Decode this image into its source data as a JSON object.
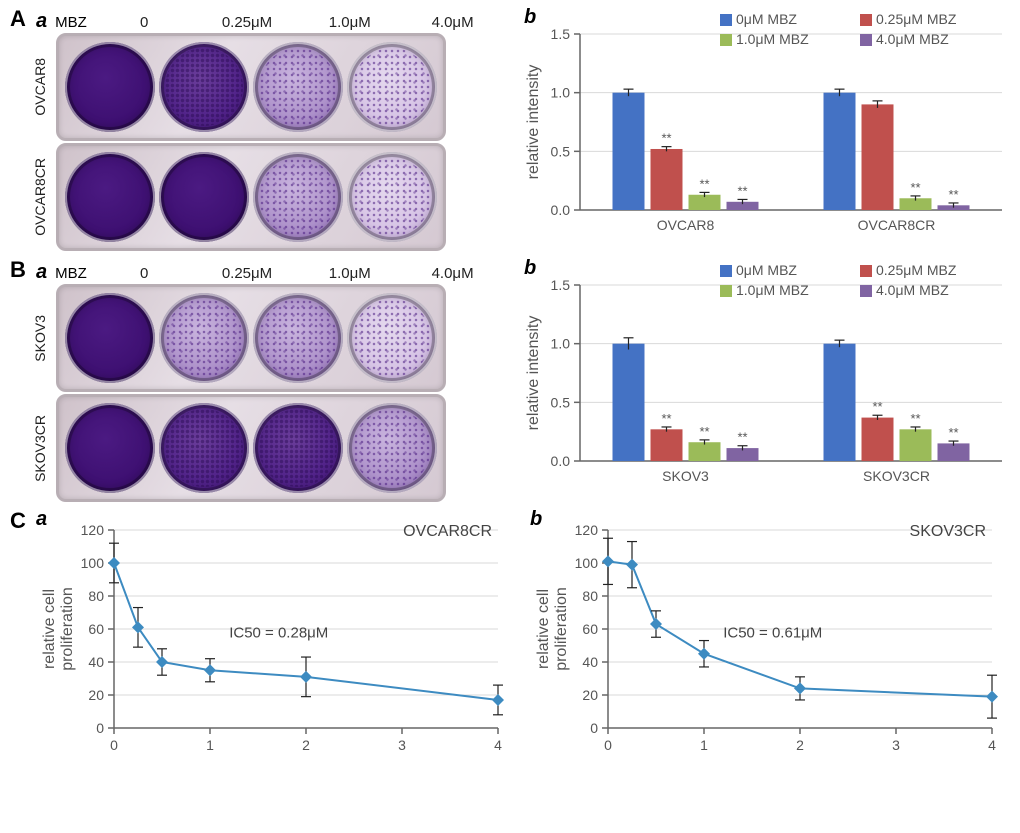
{
  "colors": {
    "blue": "#4472c4",
    "red": "#c0504d",
    "green": "#9bbb59",
    "purple": "#8064a2",
    "line": "#3d8bc1"
  },
  "sigMarker": "**",
  "panelA": {
    "letter": "A",
    "sub_a": "a",
    "sub_b": "b",
    "mbz_label": "MBZ",
    "concentrations": [
      "0",
      "0.25μM",
      "1.0μM",
      "4.0μM"
    ],
    "rows": [
      {
        "label": "OVCAR8",
        "wells": [
          "dense",
          "mid",
          "sparse",
          "vsparse"
        ]
      },
      {
        "label": "OVCAR8CR",
        "wells": [
          "dense",
          "dense",
          "sparse",
          "vsparse"
        ]
      }
    ],
    "bar": {
      "ylabel": "relative intensity",
      "ylim": [
        0,
        1.5
      ],
      "ytick_step": 0.5,
      "legend": [
        "0μM MBZ",
        "0.25μM MBZ",
        "1.0μM MBZ",
        "4.0μM MBZ"
      ],
      "legendColors": [
        "blue",
        "red",
        "green",
        "purple"
      ],
      "groups": [
        {
          "name": "OVCAR8",
          "values": [
            1.0,
            0.52,
            0.13,
            0.07
          ],
          "err": [
            0.03,
            0.02,
            0.02,
            0.02
          ],
          "sig": [
            false,
            true,
            true,
            true
          ]
        },
        {
          "name": "OVCAR8CR",
          "values": [
            1.0,
            0.9,
            0.1,
            0.04
          ],
          "err": [
            0.03,
            0.03,
            0.02,
            0.02
          ],
          "sig": [
            false,
            false,
            true,
            true
          ]
        }
      ]
    }
  },
  "panelB": {
    "letter": "B",
    "sub_a": "a",
    "sub_b": "b",
    "mbz_label": "MBZ",
    "concentrations": [
      "0",
      "0.25μM",
      "1.0μM",
      "4.0μM"
    ],
    "rows": [
      {
        "label": "SKOV3",
        "wells": [
          "dense",
          "sparse",
          "sparse",
          "vsparse"
        ]
      },
      {
        "label": "SKOV3CR",
        "wells": [
          "dense",
          "mid",
          "mid",
          "sparse"
        ]
      }
    ],
    "bar": {
      "ylabel": "relative intensity",
      "ylim": [
        0,
        1.5
      ],
      "ytick_step": 0.5,
      "legend": [
        "0μM MBZ",
        "0.25μM MBZ",
        "1.0μM MBZ",
        "4.0μM MBZ"
      ],
      "legendColors": [
        "blue",
        "red",
        "green",
        "purple"
      ],
      "groups": [
        {
          "name": "SKOV3",
          "values": [
            1.0,
            0.27,
            0.16,
            0.11
          ],
          "err": [
            0.05,
            0.02,
            0.02,
            0.02
          ],
          "sig": [
            false,
            true,
            true,
            true
          ]
        },
        {
          "name": "SKOV3CR",
          "values": [
            1.0,
            0.37,
            0.27,
            0.15
          ],
          "err": [
            0.03,
            0.02,
            0.02,
            0.02
          ],
          "sig": [
            false,
            true,
            true,
            true
          ]
        }
      ]
    }
  },
  "panelC": {
    "letter": "C",
    "sub_a": "a",
    "sub_b": "b",
    "charts": [
      {
        "title": "OVCAR8CR",
        "ylabel": "relative cell\nproliferation",
        "ic50_label": "IC50 = 0.28μM",
        "xlim": [
          0,
          4
        ],
        "xticks": [
          0,
          1,
          2,
          3,
          4
        ],
        "ylim": [
          0,
          120
        ],
        "yticks": [
          0,
          20,
          40,
          60,
          80,
          100,
          120
        ],
        "points": [
          {
            "x": 0,
            "y": 100,
            "err": 12
          },
          {
            "x": 0.25,
            "y": 61,
            "err": 12
          },
          {
            "x": 0.5,
            "y": 40,
            "err": 8
          },
          {
            "x": 1,
            "y": 35,
            "err": 7
          },
          {
            "x": 2,
            "y": 31,
            "err": 12
          },
          {
            "x": 4,
            "y": 17,
            "err": 9
          }
        ]
      },
      {
        "title": "SKOV3CR",
        "ylabel": "relative cell\nproliferation",
        "ic50_label": "IC50 = 0.61μM",
        "xlim": [
          0,
          4
        ],
        "xticks": [
          0,
          1,
          2,
          3,
          4
        ],
        "ylim": [
          0,
          120
        ],
        "yticks": [
          0,
          20,
          40,
          60,
          80,
          100,
          120
        ],
        "points": [
          {
            "x": 0,
            "y": 101,
            "err": 14
          },
          {
            "x": 0.25,
            "y": 99,
            "err": 14
          },
          {
            "x": 0.5,
            "y": 63,
            "err": 8
          },
          {
            "x": 1,
            "y": 45,
            "err": 8
          },
          {
            "x": 2,
            "y": 24,
            "err": 7
          },
          {
            "x": 4,
            "y": 19,
            "err": 13
          }
        ]
      }
    ]
  }
}
